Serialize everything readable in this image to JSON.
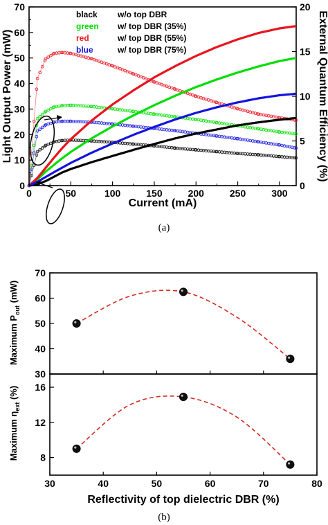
{
  "panel_a": {
    "caption": "(a)",
    "legend": [
      {
        "key": "black",
        "desc": "w/o top DBR",
        "color": "#000000"
      },
      {
        "key": "green",
        "desc": "w/ top DBR (35%)",
        "color": "#00dd00"
      },
      {
        "key": "red",
        "desc": "w/ top DBR (55%)",
        "color": "#e8141e"
      },
      {
        "key": "blue",
        "desc": "w/ top DBR (75%)",
        "color": "#1414dc"
      }
    ]
  },
  "panel_b": {
    "caption": "(b)",
    "xlabel": "Reflectivity of top dielectric DBR (%)"
  },
  "chart_data": [
    {
      "type": "line",
      "id": "a",
      "xlabel": "Current (mA)",
      "ylabel": "Light Output Power (mW)",
      "y2label": "External Quantum Efficiency (%)",
      "xlim": [
        0,
        320
      ],
      "ylim": [
        0,
        70
      ],
      "y2lim": [
        0,
        20
      ],
      "xticks": [
        0,
        50,
        100,
        150,
        200,
        250,
        300
      ],
      "yticks": [
        0,
        10,
        20,
        30,
        40,
        50,
        60,
        70
      ],
      "y2ticks": [
        0,
        5,
        10,
        15,
        20
      ],
      "x": [
        0,
        10,
        20,
        30,
        40,
        50,
        75,
        100,
        125,
        150,
        175,
        200,
        225,
        250,
        275,
        300,
        320
      ],
      "power_series": [
        {
          "name": "black",
          "color": "#000000",
          "values": [
            0,
            0.5,
            1.8,
            3.5,
            5.2,
            6.5,
            9.2,
            11.6,
            14,
            16.3,
            18.5,
            20.4,
            22,
            23.6,
            24.8,
            25.8,
            26.5
          ]
        },
        {
          "name": "green",
          "color": "#00dd00",
          "values": [
            0,
            2.5,
            5.5,
            8.2,
            10.8,
            13.2,
            18.5,
            23.2,
            27.5,
            31.5,
            35.2,
            38.6,
            41.6,
            44.3,
            46.7,
            48.8,
            50
          ]
        },
        {
          "name": "red",
          "color": "#e8141e",
          "values": [
            0,
            3,
            7,
            11,
            14.8,
            18.2,
            25.5,
            31.8,
            37.3,
            42.4,
            46.8,
            50.8,
            54.3,
            57.3,
            59.8,
            61.6,
            62.5
          ]
        },
        {
          "name": "blue",
          "color": "#1414dc",
          "values": [
            0,
            1.5,
            3.4,
            5.3,
            7.1,
            8.9,
            12.9,
            16.5,
            19.9,
            23,
            25.9,
            28.5,
            30.7,
            32.6,
            34.2,
            35.4,
            36
          ]
        }
      ],
      "eqe_series": [
        {
          "name": "black",
          "color": "#000000",
          "values": [
            0,
            3.8,
            4.5,
            4.9,
            5.05,
            5.1,
            5,
            4.85,
            4.65,
            4.45,
            4.2,
            4,
            3.8,
            3.6,
            3.45,
            3.25,
            3.1
          ]
        },
        {
          "name": "green",
          "color": "#00dd00",
          "values": [
            0,
            7.5,
            8.3,
            8.8,
            8.95,
            9,
            8.85,
            8.6,
            8.3,
            8,
            7.7,
            7.4,
            7.05,
            6.7,
            6.35,
            6,
            5.8
          ]
        },
        {
          "name": "red",
          "color": "#e8141e",
          "values": [
            0,
            12,
            14.2,
            14.8,
            14.9,
            14.8,
            14.2,
            13.4,
            12.5,
            11.6,
            10.8,
            10,
            9.3,
            8.6,
            8,
            7.6,
            7.3
          ]
        },
        {
          "name": "blue",
          "color": "#1414dc",
          "values": [
            0,
            6.1,
            6.8,
            7.1,
            7.2,
            7.2,
            7.1,
            6.9,
            6.65,
            6.4,
            6.15,
            5.85,
            5.55,
            5.25,
            4.9,
            4.55,
            4.2
          ]
        }
      ]
    },
    {
      "type": "scatter",
      "id": "b-top",
      "ylabel": "Maximum P",
      "ylabel_sub": "out",
      "ylabel_unit": " (mW)",
      "xlim": [
        30,
        80
      ],
      "ylim": [
        30,
        70
      ],
      "yticks": [
        30,
        40,
        50,
        60,
        70
      ],
      "x": [
        35,
        55,
        75
      ],
      "values": [
        50,
        62.5,
        36
      ],
      "fit": [
        [
          35,
          50
        ],
        [
          45,
          60.8
        ],
        [
          55,
          62.5
        ],
        [
          65,
          52.5
        ],
        [
          75,
          36
        ]
      ]
    },
    {
      "type": "scatter",
      "id": "b-bottom",
      "ylabel": "Maximum η",
      "ylabel_sub": "ext",
      "ylabel_unit": " (%)",
      "xlim": [
        30,
        80
      ],
      "ylim": [
        6,
        17.5
      ],
      "xticks": [
        30,
        40,
        50,
        60,
        70,
        80
      ],
      "yticks": [
        8,
        12,
        16
      ],
      "x": [
        35,
        55,
        75
      ],
      "values": [
        9,
        14.9,
        7.2
      ],
      "fit": [
        [
          35,
          9
        ],
        [
          45,
          14
        ],
        [
          55,
          14.9
        ],
        [
          65,
          12.6
        ],
        [
          75,
          7.2
        ]
      ]
    }
  ]
}
